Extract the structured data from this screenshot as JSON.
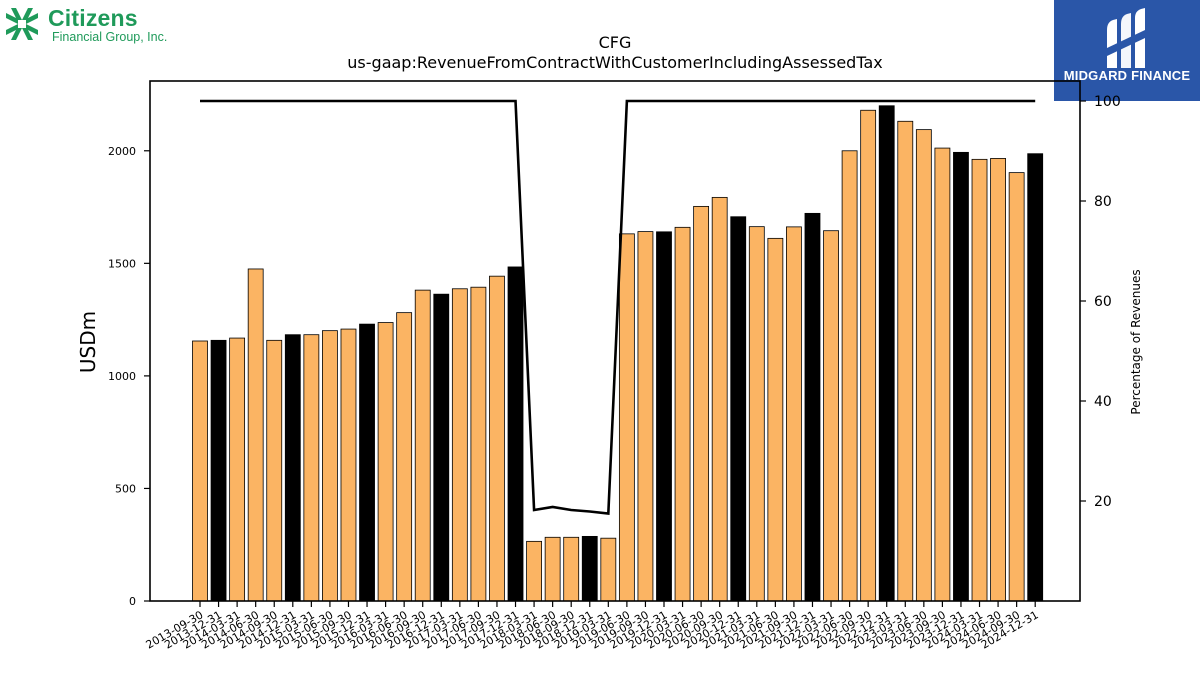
{
  "logos": {
    "left_name": "Citizens",
    "left_subtitle": "Financial Group, Inc.",
    "right_name": "MIDGARD FINANCE"
  },
  "colors": {
    "bar_default": "#fbb463",
    "bar_highlight": "#000000",
    "line": "#000000",
    "citizens_green": "#1f9a5a",
    "midgard_blue": "#2a56a8"
  },
  "chart_data": {
    "type": "bar",
    "title": "CFG",
    "subtitle": "us-gaap:RevenueFromContractWithCustomerIncludingAssessedTax",
    "ylabel": "USDm",
    "y2label": "Percentage of Revenues",
    "ylim": [
      0,
      2310
    ],
    "y2lim": [
      0,
      104
    ],
    "yticks": [
      "0",
      "500",
      "1000",
      "1500",
      "2000"
    ],
    "y2ticks": [
      "20",
      "40",
      "60",
      "80",
      "100"
    ],
    "categories": [
      "2013-09-30",
      "2013-12-31",
      "2014-03-31",
      "2014-06-30",
      "2014-09-30",
      "2014-12-31",
      "2015-03-31",
      "2015-06-30",
      "2015-09-30",
      "2015-12-31",
      "2016-03-31",
      "2016-06-30",
      "2016-09-30",
      "2016-12-31",
      "2017-03-31",
      "2017-06-30",
      "2017-09-30",
      "2017-12-31",
      "2018-03-31",
      "2018-06-30",
      "2018-09-30",
      "2018-12-31",
      "2019-03-31",
      "2019-06-30",
      "2019-09-30",
      "2019-12-31",
      "2020-03-31",
      "2020-06-30",
      "2020-09-30",
      "2020-12-31",
      "2021-03-31",
      "2021-06-30",
      "2021-09-30",
      "2021-12-31",
      "2022-03-31",
      "2022-06-30",
      "2022-09-30",
      "2022-12-31",
      "2023-03-31",
      "2023-06-30",
      "2023-09-30",
      "2023-12-31",
      "2024-03-31",
      "2024-06-30",
      "2024-09-30",
      "2024-12-31"
    ],
    "series": [
      {
        "values": [
          1155,
          1158,
          1168,
          1475,
          1158,
          1183,
          1183,
          1201,
          1208,
          1230,
          1237,
          1281,
          1381,
          1363,
          1387,
          1394,
          1443,
          1484,
          265,
          283,
          283,
          287,
          279,
          1631,
          1641,
          1640,
          1660,
          1753,
          1793,
          1707,
          1663,
          1611,
          1662,
          1722,
          1645,
          2000,
          2180,
          2200,
          2131,
          2094,
          2012,
          1993,
          1962,
          1966,
          1903,
          1987
        ],
        "highlight_annual": [
          false,
          true,
          false,
          false,
          false,
          true,
          false,
          false,
          false,
          true,
          false,
          false,
          false,
          true,
          false,
          false,
          false,
          true,
          false,
          false,
          false,
          true,
          false,
          false,
          false,
          true,
          false,
          false,
          false,
          true,
          false,
          false,
          false,
          true,
          false,
          false,
          false,
          true,
          false,
          false,
          false,
          true,
          false,
          false,
          false,
          true
        ]
      },
      {
        "axis": "right",
        "type": "line",
        "values": [
          100,
          100,
          100,
          100,
          100,
          100,
          100,
          100,
          100,
          100,
          100,
          100,
          100,
          100,
          100,
          100,
          100,
          100,
          18.2,
          18.8,
          18.2,
          17.9,
          17.5,
          100,
          100,
          100,
          100,
          100,
          100,
          100,
          100,
          100,
          100,
          100,
          100,
          100,
          100,
          100,
          100,
          100,
          100,
          100,
          100,
          100,
          100,
          100
        ]
      }
    ],
    "grid": false,
    "legend": "none"
  }
}
